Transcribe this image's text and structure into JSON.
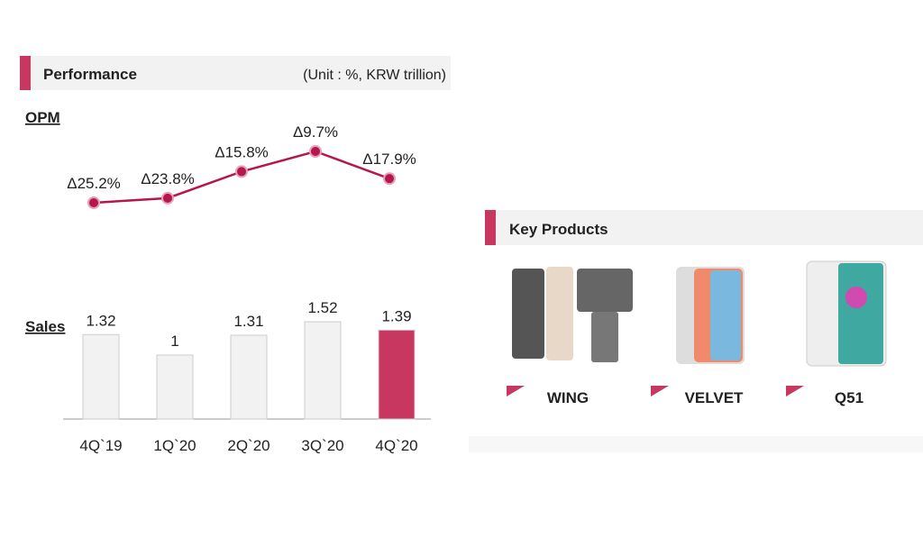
{
  "header": {
    "title": "Performance",
    "unit": "(Unit : %, KRW trillion)"
  },
  "chart_data": [
    {
      "type": "line",
      "title": "OPM",
      "values": [
        -25.2,
        -23.8,
        -15.8,
        -9.7,
        -17.9
      ],
      "value_labels": [
        "Δ25.2%",
        "Δ23.8%",
        "Δ15.8%",
        "Δ9.7%",
        "Δ17.9%"
      ],
      "color": "#b5174a"
    },
    {
      "type": "bar",
      "title": "Sales",
      "categories": [
        "4Q`19",
        "1Q`20",
        "2Q`20",
        "3Q`20",
        "4Q`20"
      ],
      "values": [
        1.32,
        1.0,
        1.31,
        1.52,
        1.39
      ],
      "colors": [
        "#f2f2f2",
        "#f2f2f2",
        "#f2f2f2",
        "#f2f2f2",
        "#c8375f"
      ]
    }
  ],
  "key_products": {
    "title": "Key Products",
    "items": [
      "WING",
      "VELVET",
      "Q51"
    ]
  }
}
